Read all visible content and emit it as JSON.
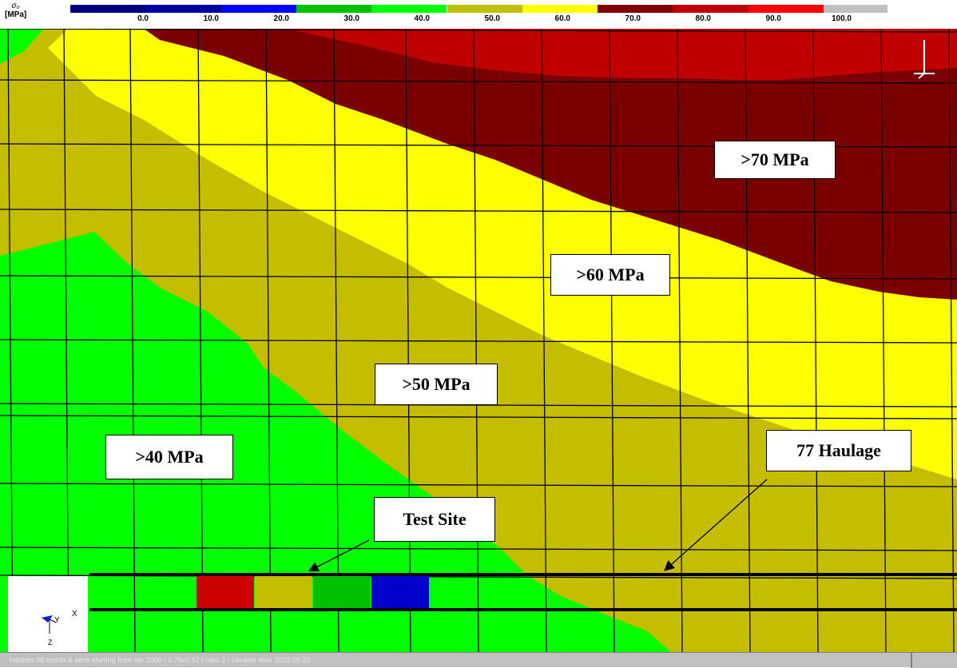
{
  "legend": {
    "unit_symbol": "σ₀",
    "unit": "[MPa]",
    "ticks": [
      "0.0",
      "10.0",
      "20.0",
      "30.0",
      "40.0",
      "50.0",
      "60.0",
      "70.0",
      "80.0",
      "90.0",
      "100.0"
    ],
    "colors": [
      "#808080",
      "#000080",
      "#0000a0",
      "#0000ff",
      "#00c000",
      "#00ff00",
      "#c0c000",
      "#ffff00",
      "#800000",
      "#c00000",
      "#ff0000",
      "#c0c0c0"
    ]
  },
  "zones": {
    "green_color": "#00ff00",
    "olive_color": "#c4bd00",
    "yellow_color": "#ffff00",
    "maroon_color": "#7a0000",
    "red_color": "#c00000"
  },
  "labels": {
    "zone_70": ">70 MPa",
    "zone_60": ">60 MPa",
    "zone_50": ">50 MPa",
    "zone_40": ">40 MPa",
    "haulage": "77 Haulage",
    "test_site": "Test Site"
  },
  "test_blocks": [
    {
      "color": "#cc0000"
    },
    {
      "color": "#c4bd00"
    },
    {
      "color": "#00c000"
    },
    {
      "color": "#0000cc"
    }
  ],
  "axis_triad": {
    "y": "Y",
    "x": "X",
    "z": "Z"
  },
  "status": {
    "text": "Hashes 08 month & sens starting from ver 2000 / 0.75x0.57 t ratio 2 / Ukraine date 2002.08.20"
  }
}
